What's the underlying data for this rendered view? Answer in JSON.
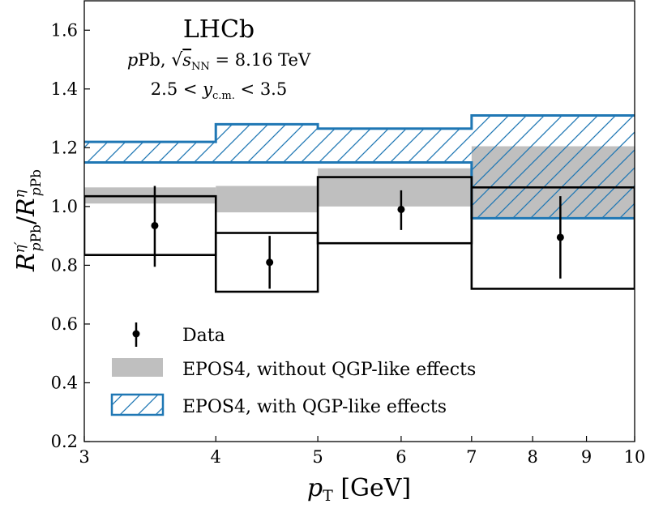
{
  "chart_data": {
    "type": "ratio-plot",
    "experiment": "LHCb",
    "system_label": "pPb, √sNN = 8.16 TeV",
    "rapidity_label": "2.5 < yc.m. < 3.5",
    "xlabel": "pT [GeV]",
    "ylabel": "R^η′_pPb / R^η_pPb",
    "x_scale": "log",
    "xlim": [
      3,
      10
    ],
    "ylim": [
      0.2,
      1.7
    ],
    "x_ticks": [
      3,
      4,
      5,
      6,
      7,
      8,
      9,
      10
    ],
    "y_ticks": [
      0.2,
      0.4,
      0.6,
      0.8,
      1.0,
      1.2,
      1.4,
      1.6
    ],
    "bins": [
      [
        3,
        4
      ],
      [
        4,
        5
      ],
      [
        5,
        7
      ],
      [
        7,
        10
      ]
    ],
    "data": {
      "x": [
        3.5,
        4.5,
        6,
        8.5
      ],
      "y": [
        0.935,
        0.81,
        0.99,
        0.895
      ],
      "stat_low": [
        0.795,
        0.72,
        0.92,
        0.755
      ],
      "stat_high": [
        1.07,
        0.9,
        1.055,
        1.035
      ],
      "syst_low": [
        0.835,
        0.71,
        0.875,
        0.72
      ],
      "syst_high": [
        1.035,
        0.91,
        1.1,
        1.065
      ]
    },
    "epos4_no_qgp": {
      "low": [
        1.01,
        0.98,
        1.0,
        0.96
      ],
      "high": [
        1.065,
        1.07,
        1.13,
        1.205
      ]
    },
    "epos4_qgp": {
      "low": [
        1.15,
        1.15,
        1.15,
        0.96
      ],
      "high": [
        1.22,
        1.28,
        1.265,
        1.31
      ]
    },
    "legend": {
      "position": "lower-left",
      "entries": [
        "Data",
        "EPOS4, without QGP-like effects",
        "EPOS4, with QGP-like effects"
      ]
    },
    "colors": {
      "data": "#000000",
      "no_qgp_fill": "#bfbfbf",
      "qgp_edge": "#1f77b4"
    }
  }
}
